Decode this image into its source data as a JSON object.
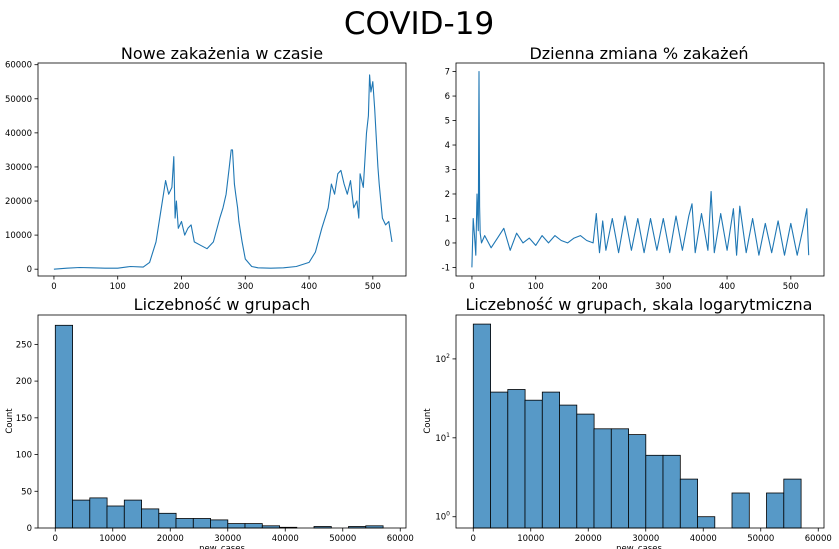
{
  "figure": {
    "suptitle": "COVID-19",
    "series_color": "#1f77b4",
    "bar_fill": "#5799c7",
    "bar_edge": "#000000"
  },
  "chart_data": [
    {
      "type": "line",
      "title": "Nowe zakażenia w czasie",
      "xlabel": "",
      "ylabel": "",
      "xlim": [
        -25,
        552
      ],
      "ylim": [
        -2000,
        60500
      ],
      "x_ticks": [
        0,
        100,
        200,
        300,
        400,
        500
      ],
      "y_ticks": [
        0,
        10000,
        20000,
        30000,
        40000,
        50000,
        60000
      ],
      "grid": false,
      "x": [
        0,
        20,
        40,
        60,
        80,
        100,
        120,
        140,
        150,
        160,
        165,
        170,
        175,
        180,
        185,
        188,
        190,
        192,
        195,
        200,
        205,
        210,
        215,
        220,
        230,
        240,
        250,
        260,
        265,
        270,
        275,
        278,
        280,
        283,
        285,
        288,
        290,
        295,
        300,
        310,
        320,
        340,
        360,
        380,
        400,
        410,
        420,
        430,
        435,
        440,
        445,
        450,
        455,
        460,
        465,
        470,
        475,
        478,
        480,
        485,
        490,
        493,
        495,
        497,
        500,
        503,
        505,
        508,
        510,
        515,
        520,
        525,
        530
      ],
      "y": [
        0,
        300,
        500,
        400,
        300,
        300,
        800,
        600,
        2000,
        8000,
        14000,
        20000,
        26000,
        22000,
        24000,
        33000,
        15000,
        20000,
        12000,
        14000,
        10000,
        12000,
        13000,
        8000,
        7000,
        6000,
        8000,
        15000,
        18000,
        22000,
        30000,
        35000,
        35000,
        25000,
        22000,
        18000,
        14000,
        8000,
        3000,
        800,
        400,
        300,
        400,
        800,
        2000,
        5000,
        12000,
        18000,
        25000,
        22000,
        28000,
        29000,
        25000,
        22000,
        26000,
        18000,
        20000,
        15000,
        28000,
        24000,
        40000,
        45000,
        57000,
        52000,
        55000,
        47000,
        40000,
        30000,
        25000,
        15000,
        13000,
        14000,
        8000
      ]
    },
    {
      "type": "line",
      "title": "Dzienna zmiana % zakażeń",
      "xlabel": "",
      "ylabel": "",
      "xlim": [
        -25,
        552
      ],
      "ylim": [
        -1.35,
        7.35
      ],
      "x_ticks": [
        0,
        100,
        200,
        300,
        400,
        500
      ],
      "y_ticks": [
        -1,
        0,
        1,
        2,
        3,
        4,
        5,
        6,
        7
      ],
      "grid": false,
      "x": [
        0,
        2,
        4,
        6,
        8,
        10,
        11,
        12,
        13,
        15,
        20,
        30,
        40,
        50,
        60,
        70,
        80,
        90,
        100,
        110,
        120,
        130,
        140,
        150,
        160,
        170,
        180,
        190,
        195,
        197,
        200,
        205,
        210,
        220,
        230,
        240,
        250,
        260,
        270,
        280,
        290,
        300,
        310,
        320,
        330,
        340,
        345,
        350,
        360,
        370,
        375,
        380,
        390,
        400,
        410,
        415,
        420,
        430,
        440,
        450,
        460,
        470,
        480,
        490,
        500,
        510,
        520,
        525,
        528
      ],
      "y": [
        -1.0,
        1.0,
        0.3,
        -0.5,
        2.0,
        0.5,
        7.0,
        1.5,
        0.4,
        0.0,
        0.3,
        -0.2,
        0.2,
        0.6,
        -0.3,
        0.4,
        0.0,
        0.2,
        -0.1,
        0.3,
        0.0,
        0.3,
        0.1,
        0.0,
        0.2,
        0.3,
        0.1,
        0.0,
        1.2,
        0.5,
        -0.4,
        0.9,
        -0.3,
        1.0,
        -0.4,
        1.1,
        -0.3,
        1.0,
        -0.4,
        1.0,
        -0.3,
        1.0,
        -0.4,
        1.1,
        -0.3,
        1.1,
        1.6,
        -0.4,
        1.2,
        -0.3,
        2.1,
        -0.4,
        1.2,
        -0.3,
        1.4,
        -0.5,
        1.5,
        -0.4,
        1.0,
        -0.5,
        0.8,
        -0.4,
        0.9,
        -0.5,
        0.8,
        -0.5,
        0.7,
        1.4,
        -0.5
      ]
    },
    {
      "type": "bar",
      "title": "Liczebność w grupach",
      "xlabel": "new_cases",
      "ylabel": "Count",
      "xlim": [
        -3000,
        61000
      ],
      "ylim": [
        0,
        290
      ],
      "x_ticks": [
        0,
        10000,
        20000,
        30000,
        40000,
        50000,
        60000
      ],
      "y_ticks": [
        0,
        50,
        100,
        150,
        200,
        250
      ],
      "grid": false,
      "bin_width": 3000,
      "bin_start": 0,
      "counts": [
        276,
        38,
        41,
        30,
        38,
        26,
        20,
        13,
        13,
        11,
        6,
        6,
        3,
        1,
        0,
        2,
        0,
        2,
        3
      ]
    },
    {
      "type": "bar",
      "title": "Liczebność w grupach, skala logarytmiczna",
      "xlabel": "new_cases",
      "ylabel": "Count",
      "log_scale_y": true,
      "xlim": [
        -3000,
        61000
      ],
      "ylim": [
        0.72,
        360
      ],
      "x_ticks": [
        0,
        10000,
        20000,
        30000,
        40000,
        50000,
        60000
      ],
      "y_ticks": [
        1,
        10,
        100
      ],
      "grid": false,
      "bin_width": 3000,
      "bin_start": 0,
      "counts": [
        276,
        38,
        41,
        30,
        38,
        26,
        20,
        13,
        13,
        11,
        6,
        6,
        3,
        1,
        0,
        2,
        0,
        2,
        3
      ]
    }
  ]
}
